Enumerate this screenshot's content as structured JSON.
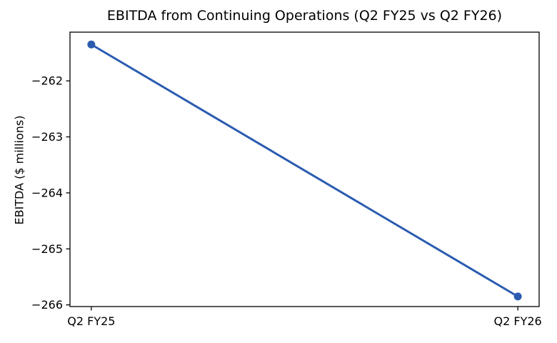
{
  "chart_data": {
    "type": "line",
    "title": "EBITDA from Continuing Operations (Q2 FY25 vs Q2 FY26)",
    "ylabel": "EBITDA ($ millions)",
    "categories": [
      "Q2 FY25",
      "Q2 FY26"
    ],
    "series": [
      {
        "values": [
          -261.35,
          -265.85
        ]
      }
    ],
    "yticks": [
      -262,
      -263,
      -264,
      -265,
      -266
    ],
    "ytick_labels": [
      "−262",
      "−263",
      "−264",
      "−265",
      "−266"
    ],
    "ylim": [
      -266.03,
      -261.13
    ],
    "xlim": [
      -0.05,
      1.05
    ],
    "grid": false,
    "legend": false,
    "line_color": "#2b5cb0",
    "marker": "circle",
    "spine_color": "#000000",
    "text_color": "#000000",
    "background_color": "#ffffff"
  }
}
